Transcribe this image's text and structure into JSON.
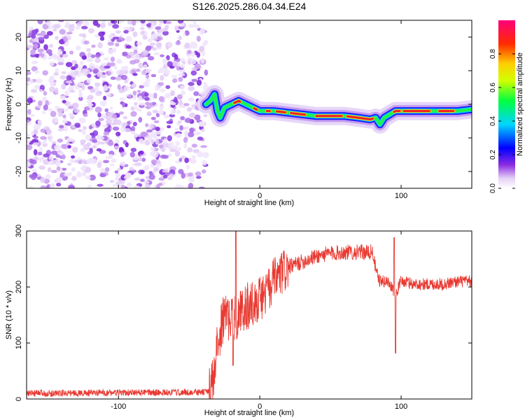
{
  "title": "S126.2025.286.04.34.E24",
  "chart_data": [
    {
      "type": "heatmap",
      "title": "S126.2025.286.04.34.E24",
      "xlabel": "Height of straight line (km)",
      "ylabel": "Frequency (Hz)",
      "xlim": [
        -165,
        150
      ],
      "ylim": [
        -25,
        25
      ],
      "x_ticks": [
        -100,
        0,
        100
      ],
      "y_ticks": [
        -20,
        -10,
        0,
        10,
        20
      ],
      "noise_region_x": [
        -165,
        -38
      ],
      "ridge": {
        "x": [
          -38,
          -35,
          -32,
          -30,
          -28,
          -25,
          -20,
          -15,
          -10,
          -5,
          0,
          5,
          10,
          20,
          30,
          40,
          50,
          60,
          70,
          78,
          82,
          85,
          88,
          92,
          96,
          100,
          110,
          120,
          130,
          140,
          150
        ],
        "y": [
          0,
          1,
          3,
          -2,
          -4,
          -1,
          0,
          1,
          0,
          -1,
          -2,
          -2,
          -2,
          -2.5,
          -3,
          -3.5,
          -3.5,
          -3.5,
          -4,
          -4.5,
          -4,
          -6,
          -4,
          -3,
          -2,
          -2,
          -2,
          -2,
          -2,
          -2,
          -1.5
        ]
      },
      "colorbar": {
        "label": "Normalized spectral amplitude",
        "range": [
          0,
          1
        ],
        "ticks": [
          0.0,
          0.2,
          0.4,
          0.6,
          0.8
        ],
        "tick_labels": [
          "0.0",
          "0.2",
          "0.4",
          "0.6",
          "0.8"
        ]
      }
    },
    {
      "type": "line",
      "xlabel": "Height of straight line (km)",
      "ylabel": "SNR (10 * v/v)",
      "xlim": [
        -165,
        150
      ],
      "ylim": [
        0,
        300
      ],
      "x_ticks": [
        -100,
        0,
        100
      ],
      "y_ticks": [
        0,
        100,
        200,
        300
      ],
      "color": "#e83a32",
      "envelope": {
        "x": [
          -165,
          -40,
          -35,
          -32,
          -30,
          -25,
          -20,
          -15,
          -10,
          -5,
          0,
          5,
          10,
          20,
          30,
          40,
          50,
          60,
          70,
          80,
          82,
          85,
          90,
          94,
          96,
          98,
          100,
          110,
          120,
          130,
          140,
          150
        ],
        "y": [
          10,
          12,
          15,
          40,
          100,
          150,
          140,
          150,
          165,
          170,
          180,
          190,
          210,
          235,
          245,
          255,
          260,
          262,
          262,
          262,
          230,
          210,
          210,
          200,
          180,
          200,
          210,
          205,
          205,
          205,
          210,
          210
        ]
      },
      "spikes": [
        {
          "x": -17,
          "y": 305
        },
        {
          "x": -19,
          "y": 60
        },
        {
          "x": 95,
          "y": 288
        },
        {
          "x": 96,
          "y": 82
        }
      ]
    }
  ]
}
